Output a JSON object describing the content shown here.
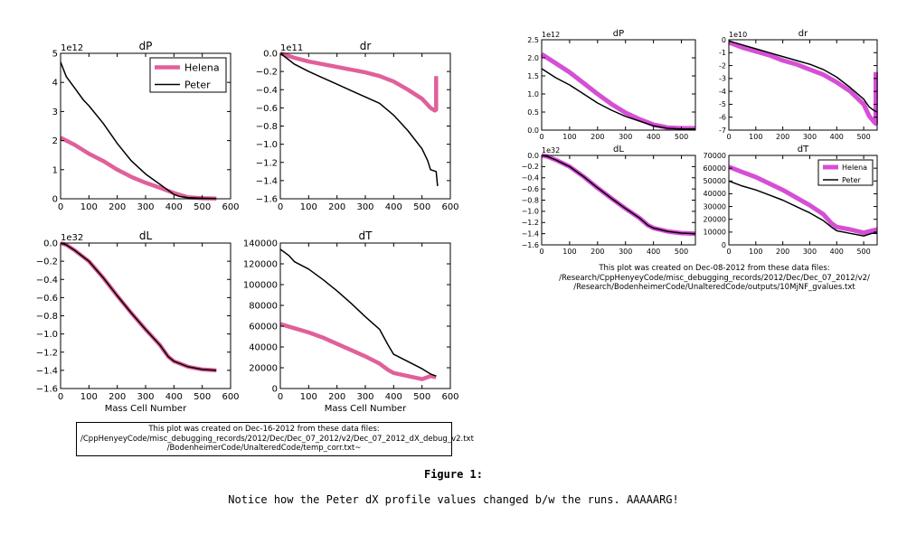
{
  "figure": {
    "title": "Figure 1:",
    "caption": "Notice how the Peter dX profile values changed b/w the runs.  AAAAARG!"
  },
  "left_panel": {
    "note_lines": [
      "This plot was created on Dec-16-2012 from these data files:",
      "/CppHenyeyCode/misc_debugging_records/2012/Dec/Dec_07_2012/v2/Dec_07_2012_dX_debug_v2.txt",
      "/BodenheimerCode/UnalteredCode/temp_corr.txt~"
    ]
  },
  "right_panel": {
    "note_lines": [
      "This plot was created on Dec-08-2012 from these data files:",
      "/Research/CppHenyeyCode/misc_debugging_records/2012/Dec/Dec_07_2012/v2/",
      "/Research/BodenheimerCode/UnalteredCode/outputs/10MjNF_gvalues.txt"
    ]
  },
  "colors": {
    "helena": "#e0609a",
    "helena_right": "#d54fd5",
    "peter": "#000000"
  },
  "chart_data": [
    {
      "type": "line",
      "panel": "left",
      "title": "dP",
      "exponent": "1e12",
      "xlabel": "",
      "xlim": [
        0,
        600
      ],
      "ylim": [
        0,
        5
      ],
      "xticks": [
        0,
        100,
        200,
        300,
        400,
        500,
        600
      ],
      "yticks": [
        0,
        1,
        2,
        3,
        4,
        5
      ],
      "legend": "top-right",
      "grid": false,
      "series": [
        {
          "name": "Helena",
          "x": [
            0,
            50,
            100,
            150,
            200,
            250,
            300,
            350,
            400,
            450,
            500,
            550
          ],
          "y": [
            2.1,
            1.85,
            1.55,
            1.3,
            1.0,
            0.75,
            0.55,
            0.38,
            0.2,
            0.05,
            0.02,
            0.01
          ]
        },
        {
          "name": "Peter",
          "x": [
            0,
            20,
            50,
            80,
            100,
            150,
            200,
            250,
            300,
            350,
            400,
            420,
            450,
            500,
            550
          ],
          "y": [
            4.7,
            4.2,
            3.8,
            3.4,
            3.2,
            2.6,
            1.9,
            1.3,
            0.85,
            0.5,
            0.15,
            0.08,
            0.04,
            0.02,
            0.01
          ]
        }
      ]
    },
    {
      "type": "line",
      "panel": "left",
      "title": "dr",
      "exponent": "1e11",
      "xlabel": "",
      "xlim": [
        0,
        600
      ],
      "ylim": [
        -1.6,
        0.0
      ],
      "xticks": [
        0,
        100,
        200,
        300,
        400,
        500,
        600
      ],
      "yticks": [
        0.0,
        -0.2,
        -0.4,
        -0.6,
        -0.8,
        -1.0,
        -1.2,
        -1.4,
        -1.6
      ],
      "grid": false,
      "series": [
        {
          "name": "Helena",
          "x": [
            0,
            50,
            100,
            150,
            200,
            250,
            300,
            350,
            400,
            450,
            500,
            530,
            545,
            550,
            550
          ],
          "y": [
            0.0,
            -0.05,
            -0.09,
            -0.12,
            -0.15,
            -0.18,
            -0.21,
            -0.25,
            -0.31,
            -0.4,
            -0.5,
            -0.6,
            -0.63,
            -0.62,
            -0.25
          ]
        },
        {
          "name": "Peter",
          "x": [
            0,
            50,
            100,
            150,
            200,
            250,
            300,
            350,
            400,
            450,
            500,
            520,
            530,
            550,
            555
          ],
          "y": [
            0.0,
            -0.12,
            -0.2,
            -0.27,
            -0.34,
            -0.41,
            -0.48,
            -0.55,
            -0.68,
            -0.85,
            -1.05,
            -1.18,
            -1.28,
            -1.3,
            -1.46
          ]
        }
      ]
    },
    {
      "type": "line",
      "panel": "left",
      "title": "dL",
      "exponent": "1e32",
      "xlabel": "Mass Cell Number",
      "xlim": [
        0,
        600
      ],
      "ylim": [
        -1.6,
        0.0
      ],
      "xticks": [
        0,
        100,
        200,
        300,
        400,
        500,
        600
      ],
      "yticks": [
        0.0,
        -0.2,
        -0.4,
        -0.6,
        -0.8,
        -1.0,
        -1.2,
        -1.4,
        -1.6
      ],
      "grid": false,
      "series": [
        {
          "name": "Helena",
          "x": [
            0,
            20,
            50,
            100,
            150,
            200,
            250,
            300,
            350,
            380,
            400,
            450,
            500,
            550
          ],
          "y": [
            0.0,
            -0.02,
            -0.08,
            -0.2,
            -0.38,
            -0.58,
            -0.77,
            -0.95,
            -1.12,
            -1.25,
            -1.3,
            -1.36,
            -1.39,
            -1.4
          ]
        },
        {
          "name": "Peter",
          "x": [
            0,
            20,
            50,
            100,
            150,
            200,
            250,
            300,
            350,
            380,
            400,
            450,
            500,
            550
          ],
          "y": [
            0.0,
            -0.02,
            -0.08,
            -0.2,
            -0.38,
            -0.58,
            -0.77,
            -0.95,
            -1.12,
            -1.25,
            -1.3,
            -1.36,
            -1.39,
            -1.4
          ]
        }
      ]
    },
    {
      "type": "line",
      "panel": "left",
      "title": "dT",
      "exponent": "",
      "xlabel": "Mass Cell Number",
      "xlim": [
        0,
        600
      ],
      "ylim": [
        0,
        140000
      ],
      "xticks": [
        0,
        100,
        200,
        300,
        400,
        500,
        600
      ],
      "yticks": [
        0,
        20000,
        40000,
        60000,
        80000,
        100000,
        120000,
        140000
      ],
      "grid": false,
      "series": [
        {
          "name": "Helena",
          "x": [
            0,
            50,
            100,
            150,
            200,
            250,
            300,
            350,
            380,
            400,
            450,
            500,
            530,
            550
          ],
          "y": [
            62000,
            58000,
            54000,
            49000,
            43000,
            37000,
            31000,
            24000,
            18000,
            15000,
            12000,
            9000,
            12000,
            11000
          ]
        },
        {
          "name": "Peter",
          "x": [
            0,
            30,
            50,
            100,
            150,
            200,
            250,
            300,
            350,
            380,
            400,
            450,
            500,
            530,
            550
          ],
          "y": [
            134000,
            128000,
            122000,
            115000,
            105000,
            94000,
            82000,
            69000,
            57000,
            42000,
            33000,
            26000,
            19000,
            14000,
            12000
          ]
        }
      ]
    },
    {
      "type": "line",
      "panel": "right",
      "title": "dP",
      "exponent": "1e12",
      "xlabel": "",
      "xlim": [
        0,
        550
      ],
      "ylim": [
        0,
        2.5
      ],
      "xticks": [
        0,
        100,
        200,
        300,
        400,
        500
      ],
      "yticks": [
        0.0,
        0.5,
        1.0,
        1.5,
        2.0,
        2.5
      ],
      "grid": false,
      "series": [
        {
          "name": "Helena",
          "x": [
            0,
            50,
            100,
            150,
            200,
            250,
            300,
            350,
            400,
            450,
            500,
            550
          ],
          "y": [
            2.1,
            1.85,
            1.6,
            1.3,
            1.0,
            0.72,
            0.48,
            0.3,
            0.15,
            0.07,
            0.05,
            0.05
          ]
        },
        {
          "name": "Peter",
          "x": [
            0,
            50,
            100,
            150,
            200,
            250,
            300,
            350,
            400,
            450,
            500,
            550
          ],
          "y": [
            1.7,
            1.45,
            1.25,
            1.0,
            0.75,
            0.55,
            0.38,
            0.25,
            0.12,
            0.05,
            0.03,
            0.03
          ]
        }
      ]
    },
    {
      "type": "line",
      "panel": "right",
      "title": "dr",
      "exponent": "1e10",
      "xlabel": "",
      "xlim": [
        0,
        550
      ],
      "ylim": [
        -7,
        0
      ],
      "xticks": [
        0,
        100,
        200,
        300,
        400,
        500
      ],
      "yticks": [
        0,
        -1,
        -2,
        -3,
        -4,
        -5,
        -6,
        -7
      ],
      "grid": false,
      "series": [
        {
          "name": "Helena",
          "x": [
            0,
            50,
            100,
            150,
            200,
            250,
            300,
            350,
            400,
            450,
            500,
            520,
            540,
            545,
            545
          ],
          "y": [
            -0.2,
            -0.6,
            -0.9,
            -1.2,
            -1.6,
            -1.9,
            -2.3,
            -2.7,
            -3.3,
            -4.0,
            -5.0,
            -5.9,
            -6.4,
            -6.5,
            -2.5
          ]
        },
        {
          "name": "Peter",
          "x": [
            0,
            50,
            100,
            150,
            200,
            250,
            300,
            350,
            400,
            450,
            500,
            520,
            540,
            550
          ],
          "y": [
            -0.1,
            -0.4,
            -0.7,
            -1.0,
            -1.3,
            -1.6,
            -1.9,
            -2.3,
            -2.9,
            -3.7,
            -4.6,
            -5.2,
            -5.5,
            -5.6
          ]
        }
      ]
    },
    {
      "type": "line",
      "panel": "right",
      "title": "dL",
      "exponent": "1e32",
      "xlabel": "",
      "xlim": [
        0,
        550
      ],
      "ylim": [
        -1.6,
        0.0
      ],
      "xticks": [
        0,
        100,
        200,
        300,
        400,
        500
      ],
      "yticks": [
        0.0,
        -0.2,
        -0.4,
        -0.6,
        -0.8,
        -1.0,
        -1.2,
        -1.4,
        -1.6
      ],
      "grid": false,
      "series": [
        {
          "name": "Helena",
          "x": [
            0,
            20,
            50,
            100,
            150,
            200,
            250,
            300,
            350,
            380,
            400,
            450,
            500,
            550
          ],
          "y": [
            0.0,
            -0.02,
            -0.08,
            -0.2,
            -0.38,
            -0.58,
            -0.77,
            -0.95,
            -1.12,
            -1.25,
            -1.3,
            -1.36,
            -1.39,
            -1.4
          ]
        },
        {
          "name": "Peter",
          "x": [
            0,
            20,
            50,
            100,
            150,
            200,
            250,
            300,
            350,
            380,
            400,
            450,
            500,
            550
          ],
          "y": [
            0.0,
            -0.02,
            -0.08,
            -0.2,
            -0.38,
            -0.58,
            -0.77,
            -0.95,
            -1.12,
            -1.25,
            -1.3,
            -1.36,
            -1.39,
            -1.4
          ]
        }
      ]
    },
    {
      "type": "line",
      "panel": "right",
      "title": "dT",
      "exponent": "",
      "xlabel": "",
      "xlim": [
        0,
        550
      ],
      "ylim": [
        0,
        70000
      ],
      "xticks": [
        0,
        100,
        200,
        300,
        400,
        500
      ],
      "yticks": [
        0,
        10000,
        20000,
        30000,
        40000,
        50000,
        60000,
        70000
      ],
      "legend": "top-right",
      "grid": false,
      "series": [
        {
          "name": "Helena",
          "x": [
            0,
            50,
            100,
            150,
            200,
            250,
            300,
            350,
            380,
            400,
            450,
            500,
            530,
            550
          ],
          "y": [
            61000,
            57000,
            53000,
            48000,
            43000,
            37000,
            31000,
            24000,
            17000,
            14000,
            12000,
            9500,
            11000,
            12000
          ]
        },
        {
          "name": "Peter",
          "x": [
            0,
            50,
            100,
            150,
            200,
            250,
            300,
            350,
            380,
            400,
            450,
            500,
            530,
            550
          ],
          "y": [
            50000,
            46000,
            43000,
            39000,
            35000,
            30000,
            25000,
            19000,
            14000,
            11000,
            9000,
            7000,
            9000,
            9000
          ]
        }
      ]
    }
  ]
}
